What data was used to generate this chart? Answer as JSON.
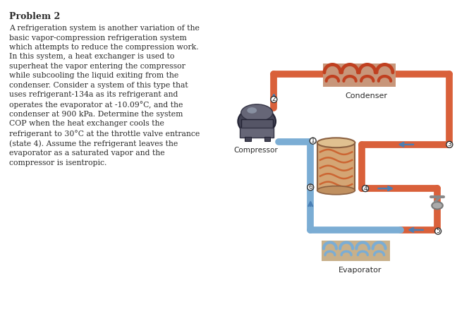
{
  "title": "Problem 2",
  "body_text": "A refrigeration system is another variation of the\nbasic vapor-compression refrigeration system\nwhich attempts to reduce the compression work.\nIn this system, a heat exchanger is used to\nsuperheat the vapor entering the compressor\nwhile subcooling the liquid exiting from the\ncondenser. Consider a system of this type that\nuses refrigerant-134a as its refrigerant and\noperates the evaporator at -10.09°C, and the\ncondenser at 900 kPa. Determine the system\nCOP when the heat exchanger cools the\nrefrigerant to 30°C at the throttle valve entrance\n(state 4). Assume the refrigerant leaves the\nevaporator as a saturated vapor and the\ncompressor is isentropic.",
  "background_color": "#ffffff",
  "text_color": "#2b2b2b",
  "hot_pipe_color": "#d9603a",
  "cold_pipe_color": "#7badd4",
  "pipe_lw": 7,
  "node_r": 0.013,
  "condenser_fc": "#c8967a",
  "condenser_coil_color": "#c04020",
  "evap_fc": "#c8b08a",
  "evap_coil_color": "#7badd4",
  "hx_fc": "#d4a574",
  "hx_coil_color": "#cc6633",
  "comp_dark": "#444455",
  "comp_mid": "#666677",
  "comp_light": "#888899",
  "valve_color": "#999999"
}
